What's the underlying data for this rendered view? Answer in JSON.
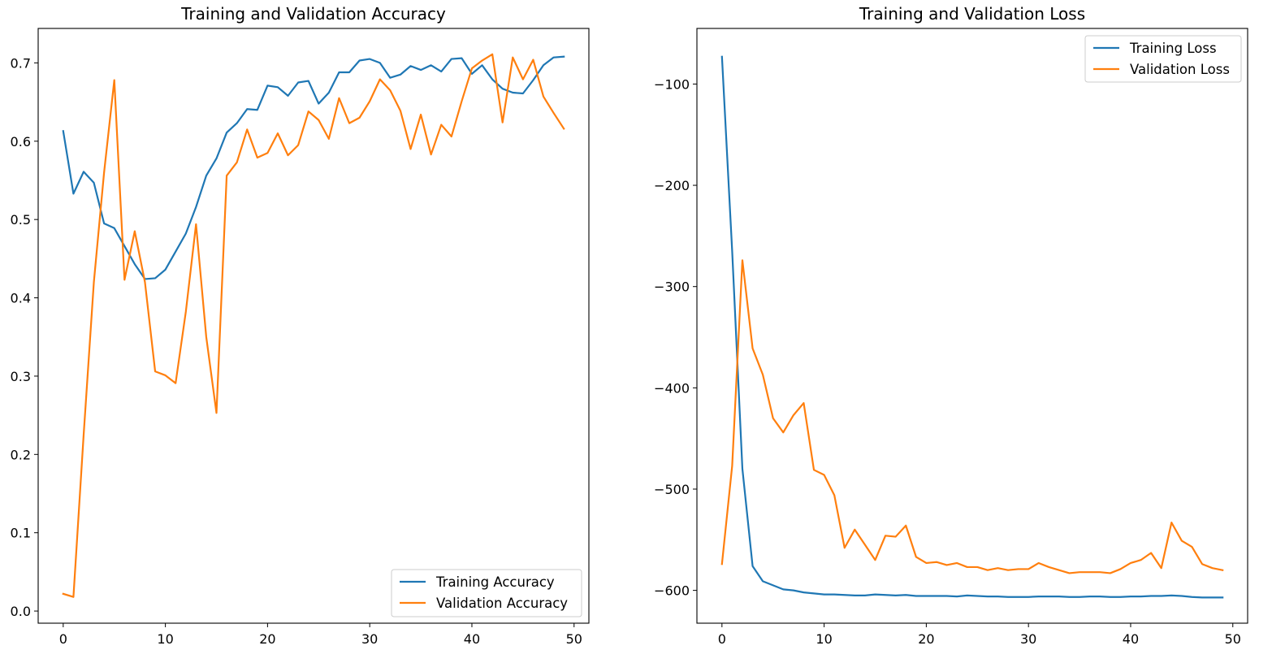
{
  "chart_data": [
    {
      "type": "line",
      "title": "Training and Validation Accuracy",
      "xlabel": "",
      "ylabel": "",
      "xlim": [
        -2.45,
        51.45
      ],
      "ylim": [
        -0.0155,
        0.744
      ],
      "xticks": [
        0,
        10,
        20,
        30,
        40,
        50
      ],
      "yticks": [
        0.0,
        0.1,
        0.2,
        0.3,
        0.4,
        0.5,
        0.6,
        0.7
      ],
      "ytick_labels": [
        "0.0",
        "0.1",
        "0.2",
        "0.3",
        "0.4",
        "0.5",
        "0.6",
        "0.7"
      ],
      "grid": false,
      "legend_position": "lower right",
      "x": [
        0,
        1,
        2,
        3,
        4,
        5,
        6,
        7,
        8,
        9,
        10,
        11,
        12,
        13,
        14,
        15,
        16,
        17,
        18,
        19,
        20,
        21,
        22,
        23,
        24,
        25,
        26,
        27,
        28,
        29,
        30,
        31,
        32,
        33,
        34,
        35,
        36,
        37,
        38,
        39,
        40,
        41,
        42,
        43,
        44,
        45,
        46,
        47,
        48,
        49
      ],
      "series": [
        {
          "name": "Training Accuracy",
          "color": "#1f77b4",
          "values": [
            0.613,
            0.533,
            0.561,
            0.547,
            0.495,
            0.489,
            0.466,
            0.443,
            0.424,
            0.425,
            0.436,
            0.459,
            0.482,
            0.516,
            0.556,
            0.578,
            0.611,
            0.623,
            0.641,
            0.64,
            0.671,
            0.669,
            0.658,
            0.675,
            0.677,
            0.648,
            0.662,
            0.688,
            0.688,
            0.703,
            0.705,
            0.7,
            0.681,
            0.685,
            0.696,
            0.691,
            0.697,
            0.689,
            0.705,
            0.706,
            0.686,
            0.697,
            0.679,
            0.667,
            0.662,
            0.661,
            0.678,
            0.697,
            0.707,
            0.708
          ]
        },
        {
          "name": "Validation Accuracy",
          "color": "#ff7f0e",
          "values": [
            0.022,
            0.018,
            0.225,
            0.42,
            0.56,
            0.678,
            0.423,
            0.485,
            0.42,
            0.306,
            0.301,
            0.291,
            0.382,
            0.494,
            0.35,
            0.253,
            0.556,
            0.573,
            0.615,
            0.579,
            0.585,
            0.61,
            0.582,
            0.595,
            0.638,
            0.627,
            0.603,
            0.655,
            0.623,
            0.63,
            0.651,
            0.679,
            0.665,
            0.639,
            0.59,
            0.634,
            0.583,
            0.621,
            0.606,
            0.651,
            0.693,
            0.703,
            0.711,
            0.624,
            0.707,
            0.679,
            0.704,
            0.657,
            0.636,
            0.616
          ]
        }
      ]
    },
    {
      "type": "line",
      "title": "Training and Validation Loss",
      "xlabel": "",
      "ylabel": "",
      "xlim": [
        -2.45,
        51.45
      ],
      "ylim": [
        -632.4,
        -45.1
      ],
      "xticks": [
        0,
        10,
        20,
        30,
        40,
        50
      ],
      "yticks": [
        -600,
        -500,
        -400,
        -300,
        -200,
        -100
      ],
      "ytick_labels": [
        "−600",
        "−500",
        "−400",
        "−300",
        "−200",
        "−100"
      ],
      "grid": false,
      "legend_position": "upper right",
      "x": [
        0,
        1,
        2,
        3,
        4,
        5,
        6,
        7,
        8,
        9,
        10,
        11,
        12,
        13,
        14,
        15,
        16,
        17,
        18,
        19,
        20,
        21,
        22,
        23,
        24,
        25,
        26,
        27,
        28,
        29,
        30,
        31,
        32,
        33,
        34,
        35,
        36,
        37,
        38,
        39,
        40,
        41,
        42,
        43,
        44,
        45,
        46,
        47,
        48,
        49
      ],
      "series": [
        {
          "name": "Training Loss",
          "color": "#1f77b4",
          "values": [
            -73,
            -265,
            -480,
            -576,
            -591,
            -595,
            -599,
            -600,
            -602,
            -603,
            -604,
            -604,
            -604.5,
            -605,
            -605,
            -604,
            -604.5,
            -605,
            -604.5,
            -605.5,
            -605.5,
            -605.5,
            -605.5,
            -606,
            -605,
            -605.5,
            -606,
            -606,
            -606.5,
            -606.5,
            -606.5,
            -606,
            -606,
            -606,
            -606.5,
            -606.5,
            -606,
            -606,
            -606.5,
            -606.5,
            -606,
            -606,
            -605.5,
            -605.5,
            -605,
            -605.5,
            -606.5,
            -607,
            -607,
            -607
          ]
        },
        {
          "name": "Validation Loss",
          "color": "#ff7f0e",
          "values": [
            -574,
            -477,
            -274,
            -361,
            -387,
            -430,
            -444,
            -427,
            -415,
            -481,
            -486,
            -506,
            -558,
            -540,
            -555,
            -570,
            -546,
            -547,
            -536,
            -567,
            -573,
            -572,
            -575,
            -573,
            -577,
            -577,
            -580,
            -578,
            -580,
            -579,
            -579,
            -573,
            -577,
            -580,
            -583,
            -582,
            -582,
            -582,
            -583,
            -579,
            -573,
            -570,
            -563,
            -578,
            -533,
            -551,
            -557,
            -574,
            -578,
            -580
          ]
        }
      ]
    }
  ]
}
